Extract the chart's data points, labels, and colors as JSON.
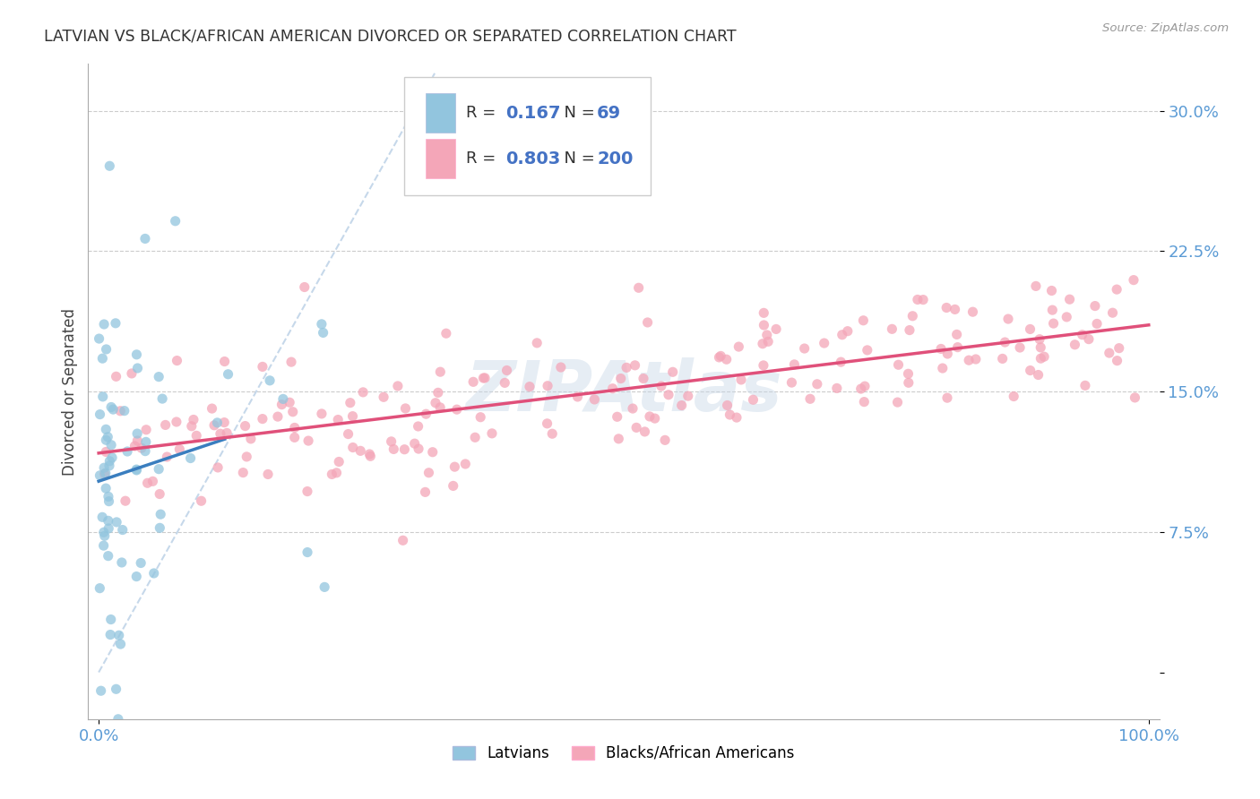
{
  "title": "LATVIAN VS BLACK/AFRICAN AMERICAN DIVORCED OR SEPARATED CORRELATION CHART",
  "source": "Source: ZipAtlas.com",
  "ylabel": "Divorced or Separated",
  "watermark": "ZIPAtlas",
  "legend": {
    "latvian_R": 0.167,
    "latvian_N": 69,
    "black_R": 0.803,
    "black_N": 200
  },
  "latvian_color": "#92c5de",
  "black_color": "#f4a6b8",
  "latvian_line_color": "#3a7ebf",
  "black_line_color": "#e0507a",
  "diagonal_color": "#c0d4e8",
  "xmin": 0.0,
  "xmax": 1.0,
  "ymin": -0.025,
  "ymax": 0.325,
  "yticks": [
    0.0,
    0.075,
    0.15,
    0.225,
    0.3
  ],
  "ytick_labels": [
    "",
    "7.5%",
    "15.0%",
    "22.5%",
    "30.0%"
  ],
  "xticks": [
    0.0,
    1.0
  ],
  "xtick_labels": [
    "0.0%",
    "100.0%"
  ]
}
